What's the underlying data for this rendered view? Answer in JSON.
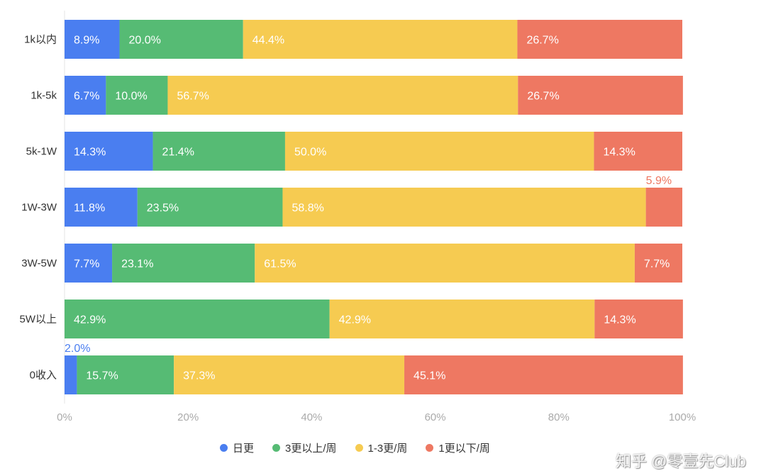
{
  "chart_data": {
    "type": "bar",
    "orientation": "horizontal",
    "stacked": true,
    "categories": [
      "1k以内",
      "1k-5k",
      "5k-1W",
      "1W-3W",
      "3W-5W",
      "5W以上",
      "0收入"
    ],
    "series": [
      {
        "name": "日更",
        "color": "#4a7ef0",
        "values": [
          8.9,
          6.7,
          14.3,
          11.8,
          7.7,
          0,
          2.0
        ]
      },
      {
        "name": "3更以上/周",
        "color": "#56bb74",
        "values": [
          20.0,
          10.0,
          21.4,
          23.5,
          23.1,
          42.9,
          15.7
        ]
      },
      {
        "name": "1-3更/周",
        "color": "#f6cb51",
        "values": [
          44.4,
          56.7,
          50.0,
          58.8,
          61.5,
          42.9,
          37.3
        ]
      },
      {
        "name": "1更以下/周",
        "color": "#ee7862",
        "values": [
          26.7,
          26.7,
          14.3,
          5.9,
          7.7,
          14.3,
          45.1
        ]
      }
    ],
    "xlim": [
      0,
      100
    ],
    "xticks": [
      "0%",
      "20%",
      "40%",
      "60%",
      "80%",
      "100%"
    ],
    "legend": "bottom",
    "grid": false
  },
  "watermark": "知乎 @零壹先Club"
}
